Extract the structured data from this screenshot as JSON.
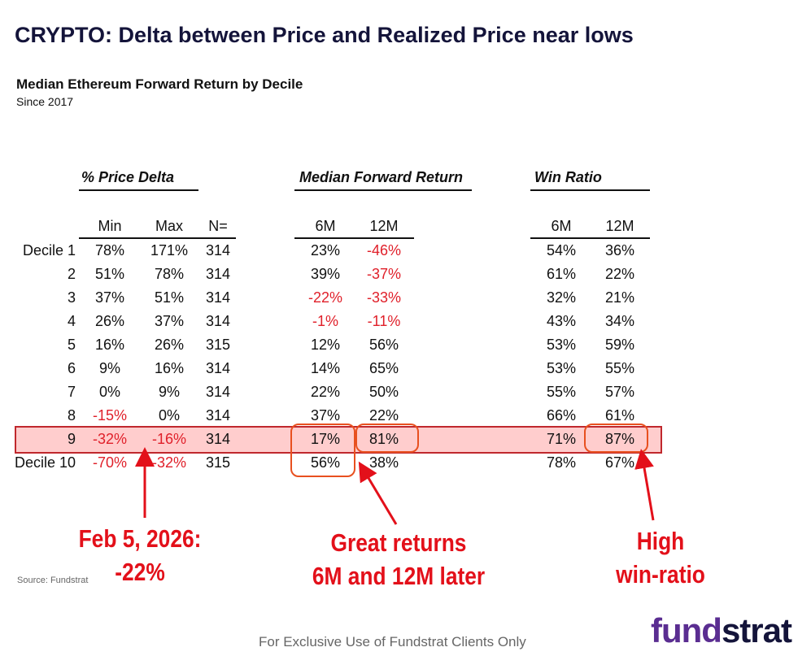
{
  "title": "CRYPTO: Delta between Price and Realized Price near lows",
  "subtitle": "Median Ethereum Forward Return by Decile",
  "since": "Since 2017",
  "groups": {
    "price_delta": "% Price Delta",
    "median_return": "Median Forward Return",
    "win_ratio": "Win Ratio"
  },
  "columns": {
    "min": "Min",
    "max": "Max",
    "n": "N=",
    "ret_6m": "6M",
    "ret_12m": "12M",
    "win_6m": "6M",
    "win_12m": "12M"
  },
  "rows": [
    {
      "decile": "Decile 1",
      "min": "78%",
      "max": "171%",
      "n": "314",
      "ret_6m": "23%",
      "ret_12m": "-46%",
      "win_6m": "54%",
      "win_12m": "36%"
    },
    {
      "decile": "2",
      "min": "51%",
      "max": "78%",
      "n": "314",
      "ret_6m": "39%",
      "ret_12m": "-37%",
      "win_6m": "61%",
      "win_12m": "22%"
    },
    {
      "decile": "3",
      "min": "37%",
      "max": "51%",
      "n": "314",
      "ret_6m": "-22%",
      "ret_12m": "-33%",
      "win_6m": "32%",
      "win_12m": "21%"
    },
    {
      "decile": "4",
      "min": "26%",
      "max": "37%",
      "n": "314",
      "ret_6m": "-1%",
      "ret_12m": "-11%",
      "win_6m": "43%",
      "win_12m": "34%"
    },
    {
      "decile": "5",
      "min": "16%",
      "max": "26%",
      "n": "315",
      "ret_6m": "12%",
      "ret_12m": "56%",
      "win_6m": "53%",
      "win_12m": "59%"
    },
    {
      "decile": "6",
      "min": "9%",
      "max": "16%",
      "n": "314",
      "ret_6m": "14%",
      "ret_12m": "65%",
      "win_6m": "53%",
      "win_12m": "55%"
    },
    {
      "decile": "7",
      "min": "0%",
      "max": "9%",
      "n": "314",
      "ret_6m": "22%",
      "ret_12m": "50%",
      "win_6m": "55%",
      "win_12m": "57%"
    },
    {
      "decile": "8",
      "min": "-15%",
      "max": "0%",
      "n": "314",
      "ret_6m": "37%",
      "ret_12m": "22%",
      "win_6m": "66%",
      "win_12m": "61%"
    },
    {
      "decile": "9",
      "min": "-32%",
      "max": "-16%",
      "n": "314",
      "ret_6m": "17%",
      "ret_12m": "81%",
      "win_6m": "71%",
      "win_12m": "87%"
    },
    {
      "decile": "Decile 10",
      "min": "-70%",
      "max": "-32%",
      "n": "315",
      "ret_6m": "56%",
      "ret_12m": "38%",
      "win_6m": "78%",
      "win_12m": "67%"
    }
  ],
  "highlighted_row": "9",
  "annotations": {
    "date_line1": "Feb 5, 2026:",
    "date_line2": "-22%",
    "returns_line1": "Great returns",
    "returns_line2": "6M and 12M later",
    "win_line1": "High",
    "win_line2": "win-ratio"
  },
  "source": "Source: Fundstrat",
  "footer": "For Exclusive Use of Fundstrat Clients Only",
  "logo": {
    "part1": "fund",
    "part2": "strat"
  },
  "colors": {
    "negative": "#e0202a",
    "highlight_fill": "#ffcdcd",
    "highlight_border": "#c0282d",
    "callout_box": "#e8501f",
    "annotation": "#e3101a",
    "logo_fund": "#5a2d91",
    "logo_strat": "#14143a"
  }
}
